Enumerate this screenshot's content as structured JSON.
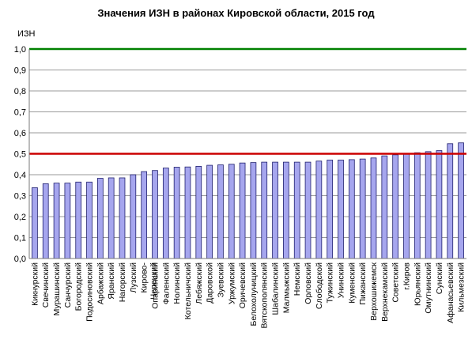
{
  "chart_data": {
    "type": "bar",
    "title": "Значения ИЗН в районах Кировской области, 2015 год",
    "ylabel": "ИЗН",
    "xlabel": "",
    "ylim": [
      0,
      1.0
    ],
    "yticks": [
      "0,0",
      "0,1",
      "0,2",
      "0,3",
      "0,4",
      "0,5",
      "0,6",
      "0,7",
      "0,8",
      "0,9",
      "1,0"
    ],
    "ytick_values": [
      0,
      0.1,
      0.2,
      0.3,
      0.4,
      0.5,
      0.6,
      0.7,
      0.8,
      0.9,
      1.0
    ],
    "grid": true,
    "legend": "none",
    "bar_color": "#a6a6ee",
    "bar_edge_color": "#1f1f6e",
    "categories": [
      "Кикнурский",
      "Свечинский",
      "Мурашинский",
      "Санчурский",
      "Богородский",
      "Подосиновский",
      "Арбажский",
      "Яранский",
      "Нагорский",
      "Лузский",
      "Кирово-Чепецкий",
      "Опаринский",
      "Фаленский",
      "Нолинский",
      "Котельничский",
      "Лебяжский",
      "Даровской",
      "Зуевский",
      "Уржумский",
      "Оричевский",
      "Белохолуницкий",
      "Вятскополянский",
      "Шабалинский",
      "Малмыжский",
      "Немский",
      "Орловский",
      "Слободской",
      "Тужинский",
      "Унинский",
      "Куменский",
      "Пижанский",
      "Верхошижемский",
      "Верхнекамский",
      "Советский",
      "г.Киров",
      "Юрьянский",
      "Омутнинский",
      "Сунский",
      "Афанасьевский",
      "Кильмезский"
    ],
    "category_labels": [
      [
        "Кикнурский"
      ],
      [
        "Свечинский"
      ],
      [
        "Мурашинский"
      ],
      [
        "Санчурский"
      ],
      [
        "Богородский"
      ],
      [
        "Подосиновский"
      ],
      [
        "Арбажский"
      ],
      [
        "Яранский"
      ],
      [
        "Нагорский"
      ],
      [
        "Лузский"
      ],
      [
        "Кирово-",
        "Чепецкий"
      ],
      [
        "Опаринский"
      ],
      [
        "Фаленский"
      ],
      [
        "Нолинский"
      ],
      [
        "Котельничский"
      ],
      [
        "Лебяжский"
      ],
      [
        "Даровской"
      ],
      [
        "Зуевский"
      ],
      [
        "Уржумский"
      ],
      [
        "Оричевский"
      ],
      [
        "Белохолуницкий"
      ],
      [
        "Вятскополянский"
      ],
      [
        "Шабалинский"
      ],
      [
        "Малмыжский"
      ],
      [
        "Немский"
      ],
      [
        "Орловский"
      ],
      [
        "Слободской"
      ],
      [
        "Тужинский"
      ],
      [
        "Унинский"
      ],
      [
        "Куменский"
      ],
      [
        "Пижанский"
      ],
      [
        "Верхошижемск"
      ],
      [
        "Верхнекамский"
      ],
      [
        "Советский"
      ],
      [
        "г.Киров"
      ],
      [
        "Юрьянский"
      ],
      [
        "Омутнинский"
      ],
      [
        "Сунский"
      ],
      [
        "Афанасьевский"
      ],
      [
        "Кильмезский"
      ]
    ],
    "values": [
      0.338,
      0.357,
      0.36,
      0.36,
      0.365,
      0.365,
      0.383,
      0.385,
      0.385,
      0.4,
      0.415,
      0.42,
      0.432,
      0.436,
      0.437,
      0.44,
      0.445,
      0.447,
      0.45,
      0.456,
      0.458,
      0.46,
      0.46,
      0.46,
      0.46,
      0.46,
      0.465,
      0.47,
      0.47,
      0.472,
      0.475,
      0.48,
      0.49,
      0.495,
      0.5,
      0.505,
      0.51,
      0.515,
      0.548,
      0.552
    ],
    "reference_lines": [
      {
        "value": 1.0,
        "color": "#008000"
      },
      {
        "value": 0.5,
        "color": "#cc0000"
      }
    ]
  }
}
